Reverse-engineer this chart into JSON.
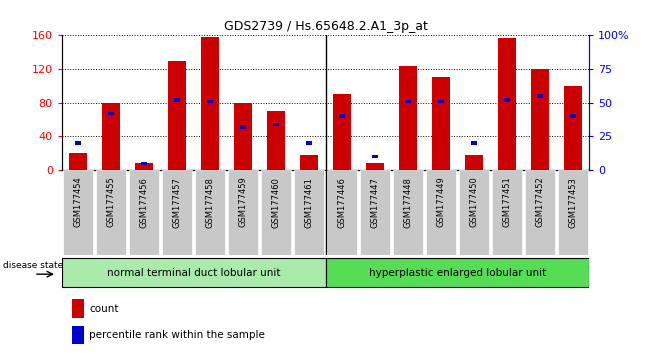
{
  "title": "GDS2739 / Hs.65648.2.A1_3p_at",
  "samples": [
    "GSM177454",
    "GSM177455",
    "GSM177456",
    "GSM177457",
    "GSM177458",
    "GSM177459",
    "GSM177460",
    "GSM177461",
    "GSM177446",
    "GSM177447",
    "GSM177448",
    "GSM177449",
    "GSM177450",
    "GSM177451",
    "GSM177452",
    "GSM177453"
  ],
  "count_values": [
    20,
    80,
    8,
    130,
    158,
    80,
    70,
    18,
    90,
    8,
    124,
    110,
    18,
    157,
    120,
    100
  ],
  "percentile_values": [
    20,
    42,
    5,
    52,
    51,
    32,
    34,
    20,
    40,
    10,
    51,
    51,
    20,
    52,
    55,
    40
  ],
  "group1_label": "normal terminal duct lobular unit",
  "group2_label": "hyperplastic enlarged lobular unit",
  "group1_count": 8,
  "group2_count": 8,
  "ylim_left": [
    0,
    160
  ],
  "ylim_right": [
    0,
    100
  ],
  "yticks_left": [
    0,
    40,
    80,
    120,
    160
  ],
  "yticks_right": [
    0,
    25,
    50,
    75,
    100
  ],
  "ytick_labels_right": [
    "0",
    "25",
    "50",
    "75",
    "100%"
  ],
  "bar_color": "#cc0000",
  "percentile_color": "#0000cc",
  "group1_bg": "#aaeaaa",
  "group2_bg": "#55dd55",
  "tick_bg": "#c8c8c8",
  "bar_width": 0.55,
  "pct_bar_width": 0.18,
  "disease_state_label": "disease state",
  "legend_count_label": "count",
  "legend_percentile_label": "percentile rank within the sample"
}
